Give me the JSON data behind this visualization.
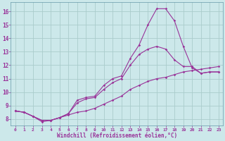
{
  "xlabel": "Windchill (Refroidissement éolien,°C)",
  "background_color": "#cce8ea",
  "grid_color": "#aacccc",
  "line_color": "#993399",
  "xlim": [
    -0.5,
    23.5
  ],
  "ylim": [
    7.5,
    16.7
  ],
  "xticks": [
    0,
    1,
    2,
    3,
    4,
    5,
    6,
    7,
    8,
    9,
    10,
    11,
    12,
    13,
    14,
    15,
    16,
    17,
    18,
    19,
    20,
    21,
    22,
    23
  ],
  "yticks": [
    8,
    9,
    10,
    11,
    12,
    13,
    14,
    15,
    16
  ],
  "line1_x": [
    0,
    1,
    2,
    3,
    4,
    5,
    6,
    7,
    8,
    9,
    10,
    11,
    12,
    13,
    14,
    15,
    16,
    17,
    18,
    19,
    20,
    21,
    22,
    23
  ],
  "line1_y": [
    8.6,
    8.5,
    8.2,
    7.8,
    7.9,
    8.1,
    8.3,
    8.5,
    8.6,
    8.8,
    9.1,
    9.4,
    9.7,
    10.2,
    10.5,
    10.8,
    11.0,
    11.1,
    11.3,
    11.5,
    11.6,
    11.7,
    11.8,
    11.9
  ],
  "line2_x": [
    0,
    1,
    2,
    3,
    4,
    5,
    6,
    7,
    8,
    9,
    10,
    11,
    12,
    13,
    14,
    15,
    16,
    17,
    18,
    19,
    20,
    21,
    22,
    23
  ],
  "line2_y": [
    8.6,
    8.5,
    8.2,
    7.9,
    7.9,
    8.1,
    8.4,
    9.4,
    9.6,
    9.7,
    10.5,
    11.0,
    11.2,
    12.5,
    13.5,
    15.0,
    16.2,
    16.2,
    15.3,
    13.4,
    11.8,
    11.4,
    11.5,
    11.5
  ],
  "line3_x": [
    0,
    1,
    2,
    3,
    4,
    5,
    6,
    7,
    8,
    9,
    10,
    11,
    12,
    13,
    14,
    15,
    16,
    17,
    18,
    19,
    20,
    21,
    22,
    23
  ],
  "line3_y": [
    8.6,
    8.5,
    8.2,
    7.9,
    7.9,
    8.1,
    8.4,
    9.2,
    9.5,
    9.6,
    10.2,
    10.7,
    11.0,
    12.0,
    12.8,
    13.2,
    13.4,
    13.2,
    12.4,
    11.9,
    11.9,
    11.4,
    11.5,
    11.5
  ]
}
